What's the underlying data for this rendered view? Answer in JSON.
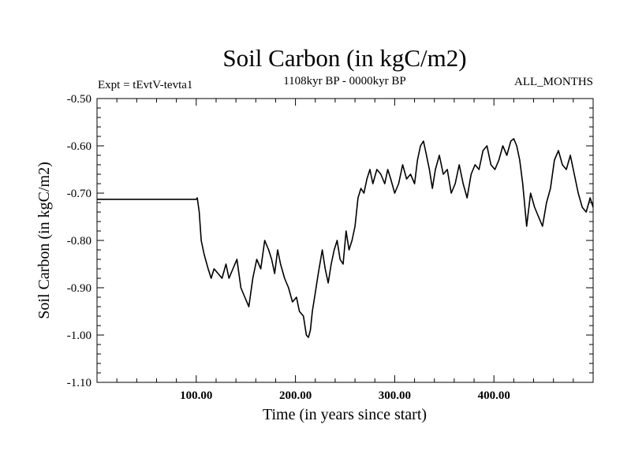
{
  "chart_data": {
    "type": "line",
    "title": "Soil Carbon (in kgC/m2)",
    "subtitle": "1108kyr BP - 0000kyr BP",
    "left_annotation": "Expt = tEvtV-tevta1",
    "right_annotation": "ALL_MONTHS",
    "xlabel": "Time (in years since start)",
    "ylabel": "Soil Carbon (in kgC/m2)",
    "xlim": [
      0,
      500
    ],
    "ylim": [
      -1.1,
      -0.5
    ],
    "x_major_ticks": [
      100,
      200,
      300,
      400
    ],
    "x_tick_labels": [
      "100.00",
      "200.00",
      "300.00",
      "400.00"
    ],
    "x_minor_step": 20,
    "y_major_ticks": [
      -1.1,
      -1.0,
      -0.9,
      -0.8,
      -0.7,
      -0.6,
      -0.5
    ],
    "y_tick_labels": [
      "-1.10",
      "-1.00",
      "-0.90",
      "-0.80",
      "-0.70",
      "-0.60",
      "-0.50"
    ],
    "y_minor_step": 0.02,
    "grid": false,
    "series": [
      {
        "name": "Soil Carbon",
        "color": "#000000",
        "x": [
          0,
          100,
          101,
          103,
          105,
          108,
          112,
          115,
          118,
          122,
          126,
          130,
          133,
          137,
          141,
          145,
          149,
          153,
          157,
          161,
          165,
          169,
          173,
          176,
          179,
          182,
          185,
          189,
          193,
          197,
          201,
          204,
          208,
          211,
          213,
          215,
          217,
          220,
          223,
          227,
          230,
          233,
          236,
          239,
          242,
          245,
          248,
          251,
          254,
          257,
          260,
          263,
          266,
          269,
          272,
          275,
          278,
          282,
          286,
          290,
          293,
          296,
          300,
          304,
          308,
          312,
          316,
          320,
          323,
          326,
          329,
          332,
          335,
          338,
          341,
          345,
          349,
          353,
          357,
          361,
          365,
          369,
          373,
          377,
          381,
          385,
          389,
          393,
          397,
          401,
          405,
          409,
          413,
          417,
          420,
          423,
          426,
          429,
          433,
          437,
          441,
          445,
          449,
          453,
          457,
          461,
          465,
          469,
          473,
          477,
          481,
          485,
          489,
          493,
          497,
          500
        ],
        "y": [
          -0.713,
          -0.713,
          -0.71,
          -0.74,
          -0.8,
          -0.83,
          -0.86,
          -0.88,
          -0.86,
          -0.87,
          -0.88,
          -0.85,
          -0.88,
          -0.86,
          -0.84,
          -0.9,
          -0.92,
          -0.94,
          -0.88,
          -0.84,
          -0.86,
          -0.8,
          -0.82,
          -0.84,
          -0.87,
          -0.82,
          -0.85,
          -0.88,
          -0.9,
          -0.93,
          -0.92,
          -0.95,
          -0.96,
          -1.0,
          -1.005,
          -0.99,
          -0.95,
          -0.91,
          -0.87,
          -0.82,
          -0.86,
          -0.89,
          -0.85,
          -0.82,
          -0.8,
          -0.84,
          -0.85,
          -0.78,
          -0.82,
          -0.8,
          -0.77,
          -0.71,
          -0.69,
          -0.7,
          -0.67,
          -0.65,
          -0.68,
          -0.65,
          -0.66,
          -0.68,
          -0.65,
          -0.67,
          -0.7,
          -0.68,
          -0.64,
          -0.67,
          -0.66,
          -0.68,
          -0.63,
          -0.6,
          -0.59,
          -0.62,
          -0.65,
          -0.69,
          -0.65,
          -0.62,
          -0.66,
          -0.65,
          -0.7,
          -0.68,
          -0.64,
          -0.68,
          -0.71,
          -0.66,
          -0.64,
          -0.65,
          -0.61,
          -0.6,
          -0.64,
          -0.65,
          -0.63,
          -0.6,
          -0.62,
          -0.59,
          -0.585,
          -0.6,
          -0.63,
          -0.68,
          -0.77,
          -0.7,
          -0.73,
          -0.75,
          -0.77,
          -0.72,
          -0.69,
          -0.63,
          -0.61,
          -0.64,
          -0.65,
          -0.62,
          -0.66,
          -0.7,
          -0.73,
          -0.74,
          -0.71,
          -0.73
        ]
      }
    ]
  }
}
